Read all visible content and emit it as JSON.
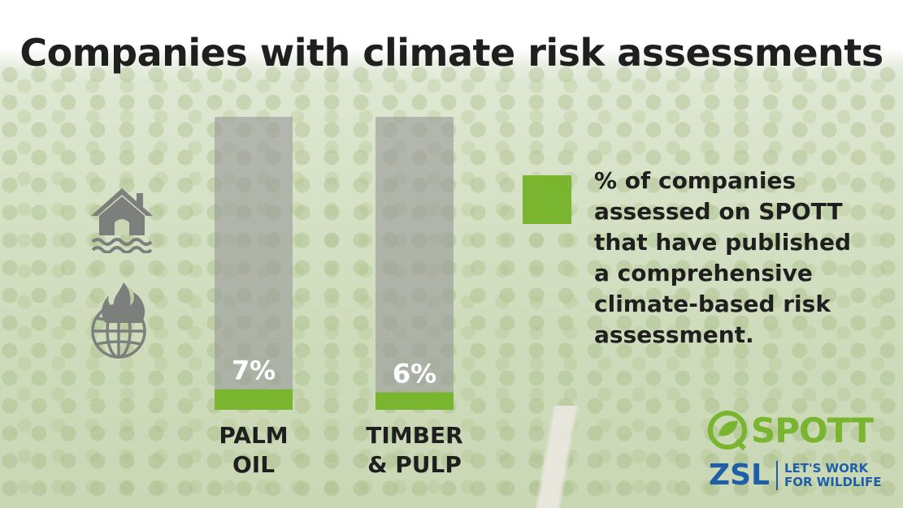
{
  "title": "Companies with climate risk assessments",
  "legend": {
    "text": "% of companies assessed on SPOTT that have published a comprehensive climate-based risk assessment.",
    "color": "#7ab52f"
  },
  "icons": [
    "house-flood-icon",
    "globe-fire-icon"
  ],
  "logos": {
    "spott": "SPOTT",
    "zsl": "ZSL",
    "zsl_tagline_1": "LET'S WORK",
    "zsl_tagline_2": "FOR WILDLIFE"
  },
  "colors": {
    "bar_fill": "#7ab52f",
    "bar_track": "#999999"
  },
  "chart_data": {
    "type": "bar",
    "categories": [
      [
        "PALM",
        "OIL"
      ],
      [
        "TIMBER",
        "& PULP"
      ]
    ],
    "values": [
      7,
      6
    ],
    "value_labels": [
      "7%",
      "6%"
    ],
    "ylim": [
      0,
      100
    ],
    "legend_position": "right"
  }
}
